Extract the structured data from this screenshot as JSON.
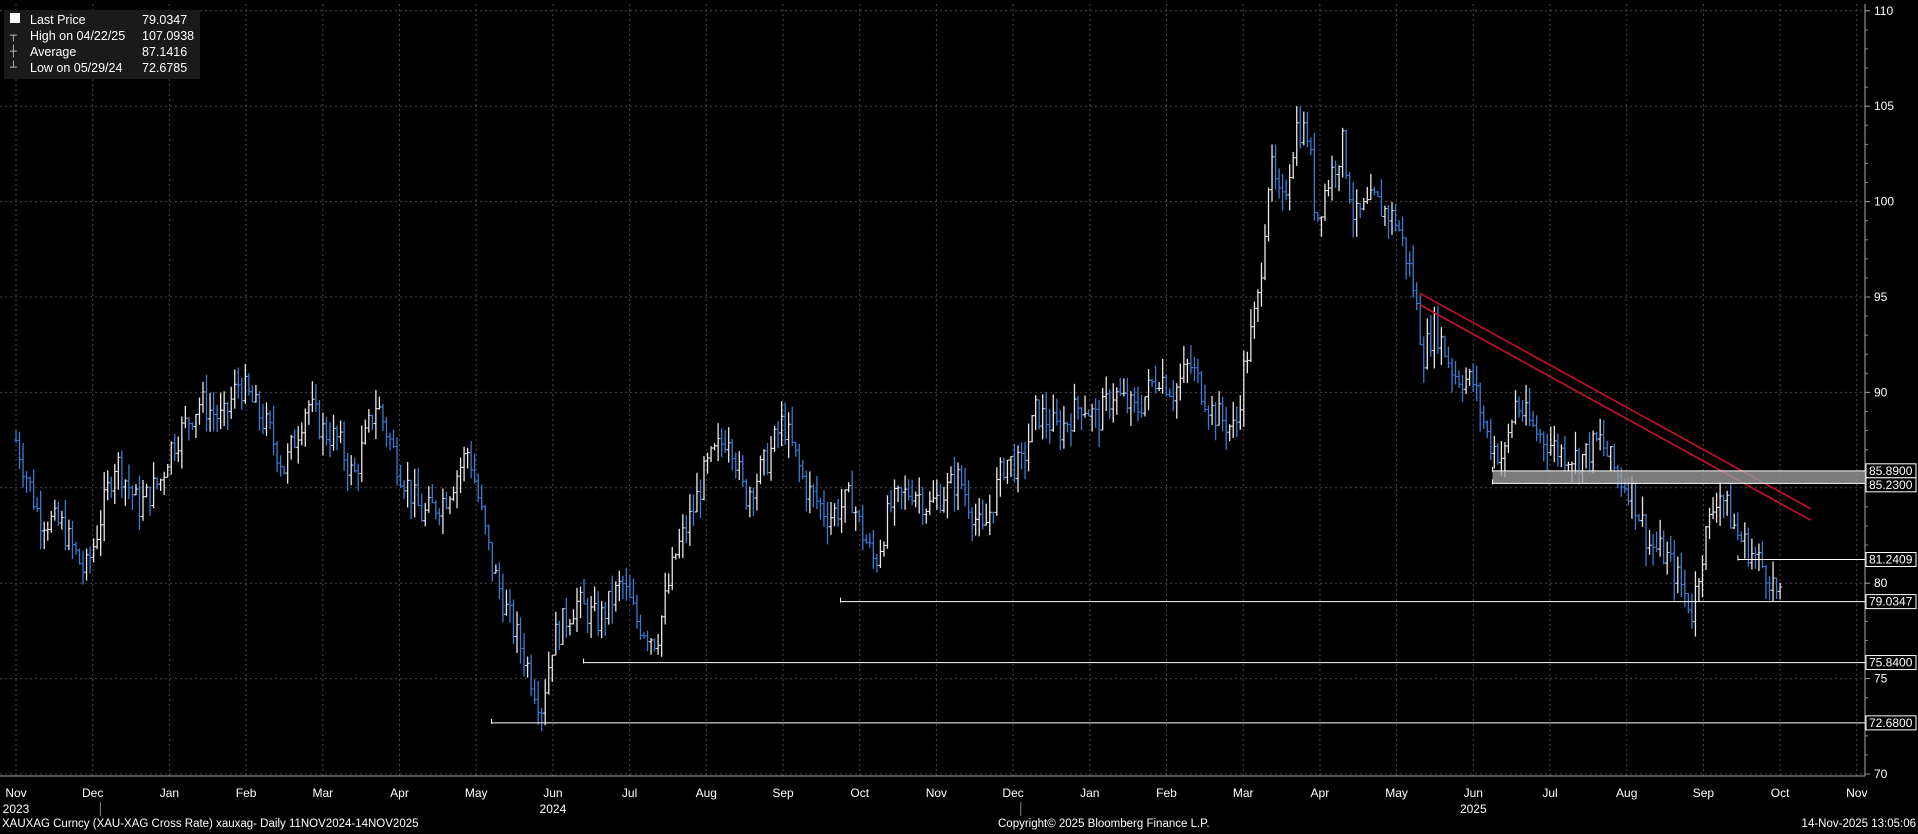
{
  "colors": {
    "background": "#000000",
    "grid": "#4a4a4a",
    "up_bar": "#e8e8e8",
    "down_bar": "#3a7bd5",
    "trendline": "#c8102e",
    "level_line": "#ffffff"
  },
  "legend": [
    {
      "icon": "square-icon",
      "label": "Last Price",
      "value": "79.0347"
    },
    {
      "icon": "high-marker-icon",
      "label": "High on 04/22/25",
      "value": "107.0938"
    },
    {
      "icon": "average-marker-icon",
      "label": "Average",
      "value": "87.1416"
    },
    {
      "icon": "low-marker-icon",
      "label": "Low on 05/29/24",
      "value": "72.6785"
    }
  ],
  "footer": {
    "left": "XAUXAG Curncy (XAU-XAG Cross Rate) xauxag- Daily 11NOV2024-14NOV2025",
    "center": "Copyright© 2025 Bloomberg Finance L.P.",
    "right": "14-Nov-2025 13:05:06"
  },
  "chart_data": {
    "type": "bar",
    "subtype": "ohlc-bars",
    "title": "",
    "ylim": [
      70,
      110
    ],
    "y_axis_position": "right",
    "y_ticks": [
      70,
      75,
      80,
      85,
      90,
      95,
      100,
      105,
      110
    ],
    "grid": true,
    "legend_position": "top-left",
    "x_months": [
      "Nov",
      "Dec",
      "Jan",
      "Feb",
      "Mar",
      "Apr",
      "May",
      "Jun",
      "Jul",
      "Aug",
      "Sep",
      "Oct",
      "Nov",
      "Dec",
      "Jan",
      "Feb",
      "Mar",
      "Apr",
      "May",
      "Jun",
      "Jul",
      "Aug",
      "Sep",
      "Oct",
      "Nov"
    ],
    "x_years": [
      {
        "label": "2023",
        "month_index": 0
      },
      {
        "label": "2024",
        "month_index": 7
      },
      {
        "label": "2025",
        "month_index": 19
      }
    ],
    "price_path": [
      {
        "x": 0.0,
        "y": 87.5
      },
      {
        "x": 0.3,
        "y": 83.5
      },
      {
        "x": 0.6,
        "y": 83.0
      },
      {
        "x": 0.9,
        "y": 80.5
      },
      {
        "x": 1.0,
        "y": 81.8
      },
      {
        "x": 1.3,
        "y": 86.5
      },
      {
        "x": 1.6,
        "y": 84.0
      },
      {
        "x": 1.9,
        "y": 85.5
      },
      {
        "x": 2.0,
        "y": 87.0
      },
      {
        "x": 2.4,
        "y": 89.5
      },
      {
        "x": 2.7,
        "y": 88.5
      },
      {
        "x": 2.9,
        "y": 90.5
      },
      {
        "x": 3.0,
        "y": 90.0
      },
      {
        "x": 3.3,
        "y": 88.0
      },
      {
        "x": 3.5,
        "y": 86.0
      },
      {
        "x": 3.8,
        "y": 89.5
      },
      {
        "x": 4.0,
        "y": 88.0
      },
      {
        "x": 4.2,
        "y": 87.5
      },
      {
        "x": 4.4,
        "y": 85.5
      },
      {
        "x": 4.7,
        "y": 89.5
      },
      {
        "x": 5.0,
        "y": 86.0
      },
      {
        "x": 5.3,
        "y": 83.5
      },
      {
        "x": 5.6,
        "y": 84.5
      },
      {
        "x": 5.9,
        "y": 87.0
      },
      {
        "x": 6.2,
        "y": 81.0
      },
      {
        "x": 6.4,
        "y": 78.5
      },
      {
        "x": 6.6,
        "y": 76.5
      },
      {
        "x": 6.85,
        "y": 73.5
      },
      {
        "x": 7.0,
        "y": 77.0
      },
      {
        "x": 7.3,
        "y": 79.0
      },
      {
        "x": 7.6,
        "y": 78.0
      },
      {
        "x": 7.9,
        "y": 80.0
      },
      {
        "x": 8.1,
        "y": 78.0
      },
      {
        "x": 8.35,
        "y": 77.0
      },
      {
        "x": 8.6,
        "y": 81.5
      },
      {
        "x": 8.8,
        "y": 83.5
      },
      {
        "x": 9.0,
        "y": 86.0
      },
      {
        "x": 9.3,
        "y": 88.0
      },
      {
        "x": 9.5,
        "y": 84.5
      },
      {
        "x": 9.8,
        "y": 86.5
      },
      {
        "x": 10.0,
        "y": 88.5
      },
      {
        "x": 10.3,
        "y": 85.0
      },
      {
        "x": 10.6,
        "y": 83.5
      },
      {
        "x": 10.9,
        "y": 84.5
      },
      {
        "x": 11.0,
        "y": 83.0
      },
      {
        "x": 11.2,
        "y": 81.0
      },
      {
        "x": 11.4,
        "y": 84.0
      },
      {
        "x": 11.7,
        "y": 85.0
      },
      {
        "x": 11.9,
        "y": 84.0
      },
      {
        "x": 12.3,
        "y": 85.5
      },
      {
        "x": 12.6,
        "y": 82.5
      },
      {
        "x": 12.9,
        "y": 86.5
      },
      {
        "x": 13.1,
        "y": 86.0
      },
      {
        "x": 13.3,
        "y": 89.0
      },
      {
        "x": 13.6,
        "y": 88.0
      },
      {
        "x": 13.9,
        "y": 89.5
      },
      {
        "x": 14.1,
        "y": 88.5
      },
      {
        "x": 14.3,
        "y": 90.0
      },
      {
        "x": 14.6,
        "y": 89.0
      },
      {
        "x": 14.9,
        "y": 91.0
      },
      {
        "x": 15.1,
        "y": 90.0
      },
      {
        "x": 15.3,
        "y": 91.5
      },
      {
        "x": 15.6,
        "y": 89.0
      },
      {
        "x": 15.9,
        "y": 88.0
      },
      {
        "x": 16.0,
        "y": 91.0
      },
      {
        "x": 16.2,
        "y": 95.0
      },
      {
        "x": 16.35,
        "y": 102.0
      },
      {
        "x": 16.5,
        "y": 99.5
      },
      {
        "x": 16.7,
        "y": 104.0
      },
      {
        "x": 16.85,
        "y": 103.5
      },
      {
        "x": 16.95,
        "y": 99.0
      },
      {
        "x": 17.1,
        "y": 101.0
      },
      {
        "x": 17.3,
        "y": 103.0
      },
      {
        "x": 17.45,
        "y": 99.0
      },
      {
        "x": 17.7,
        "y": 100.0
      },
      {
        "x": 18.0,
        "y": 99.0
      },
      {
        "x": 18.2,
        "y": 96.0
      },
      {
        "x": 18.35,
        "y": 92.0
      },
      {
        "x": 18.5,
        "y": 93.5
      },
      {
        "x": 18.75,
        "y": 91.0
      },
      {
        "x": 19.0,
        "y": 90.5
      },
      {
        "x": 19.2,
        "y": 87.5
      },
      {
        "x": 19.4,
        "y": 86.5
      },
      {
        "x": 19.55,
        "y": 89.5
      },
      {
        "x": 19.8,
        "y": 88.0
      },
      {
        "x": 20.1,
        "y": 87.0
      },
      {
        "x": 20.4,
        "y": 86.5
      },
      {
        "x": 20.65,
        "y": 87.5
      },
      {
        "x": 20.9,
        "y": 85.5
      },
      {
        "x": 21.05,
        "y": 85.0
      },
      {
        "x": 21.3,
        "y": 82.0
      },
      {
        "x": 21.5,
        "y": 81.5
      },
      {
        "x": 21.7,
        "y": 80.0
      },
      {
        "x": 21.85,
        "y": 78.5
      },
      {
        "x": 22.0,
        "y": 82.0
      },
      {
        "x": 22.2,
        "y": 85.0
      },
      {
        "x": 22.45,
        "y": 82.5
      },
      {
        "x": 22.65,
        "y": 81.5
      },
      {
        "x": 22.85,
        "y": 80.5
      },
      {
        "x": 23.0,
        "y": 79.0
      }
    ],
    "level_lines": [
      {
        "label": "85.8900",
        "value": 85.89,
        "x_start": 19.25
      },
      {
        "label": "85.2300",
        "value": 85.23,
        "x_start": 19.25
      },
      {
        "label": "81.2409",
        "value": 81.2409,
        "x_start": 22.45
      },
      {
        "label": "79.0347",
        "value": 79.0347,
        "x_start": 10.75
      },
      {
        "label": "75.8400",
        "value": 75.84,
        "x_start": 7.4
      },
      {
        "label": "72.6800",
        "value": 72.68,
        "x_start": 6.2
      }
    ],
    "trendlines": [
      {
        "x1": 18.3,
        "y1": 95.2,
        "x2": 23.4,
        "y2": 83.9
      },
      {
        "x1": 18.3,
        "y1": 94.6,
        "x2": 23.4,
        "y2": 83.3
      }
    ]
  }
}
